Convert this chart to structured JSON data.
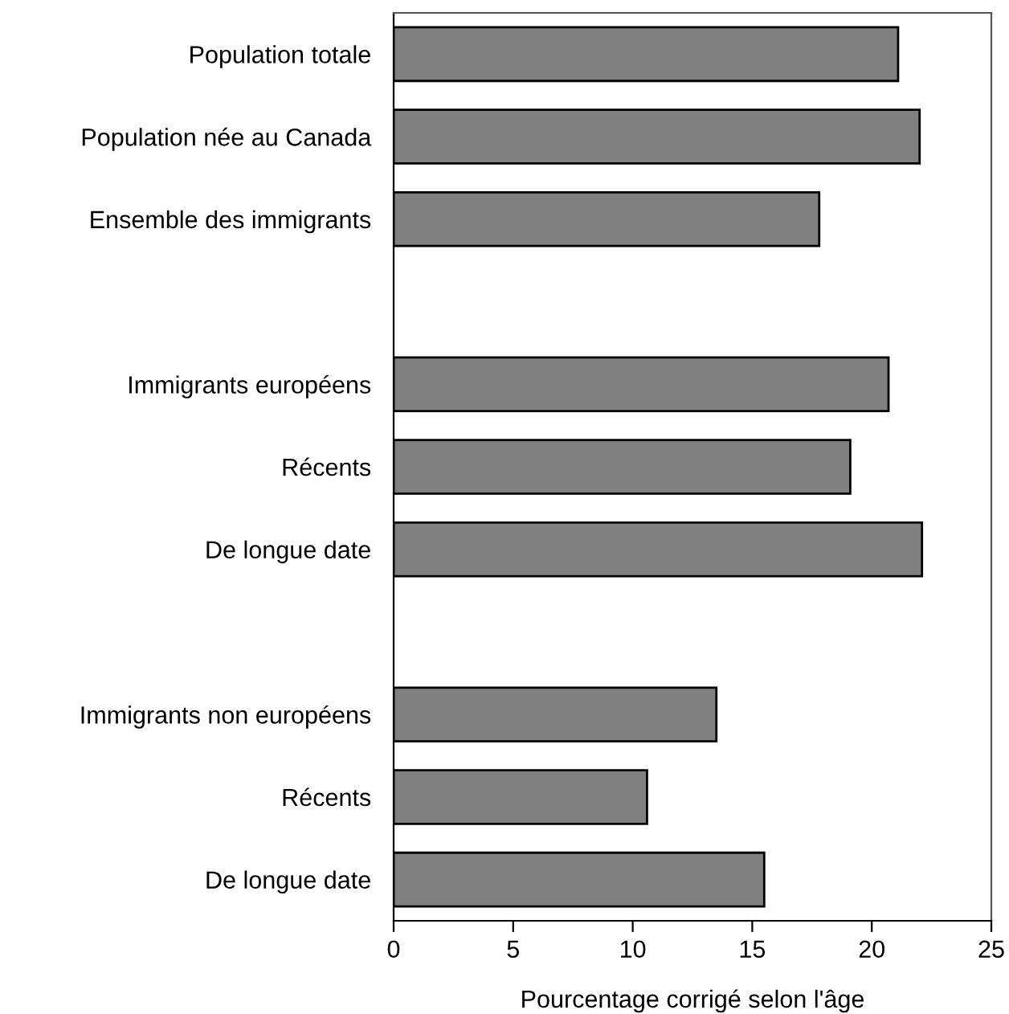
{
  "chart_data": {
    "type": "bar",
    "orientation": "horizontal",
    "xlabel": "Pourcentage corrigé selon l'âge",
    "categories": [
      "Population totale",
      "Population née au Canada",
      "Ensemble des immigrants",
      null,
      "Immigrants européens",
      "Récents",
      "De longue date",
      null,
      "Immigrants non européens",
      "Récents",
      "De longue date"
    ],
    "values": [
      21.1,
      22.0,
      17.8,
      null,
      20.7,
      19.1,
      22.1,
      null,
      13.5,
      10.6,
      15.5
    ],
    "color": "#808080",
    "xlim": [
      0,
      25
    ],
    "xticks": [
      0,
      5,
      10,
      15,
      20,
      25
    ],
    "grid": false,
    "legend": false
  }
}
